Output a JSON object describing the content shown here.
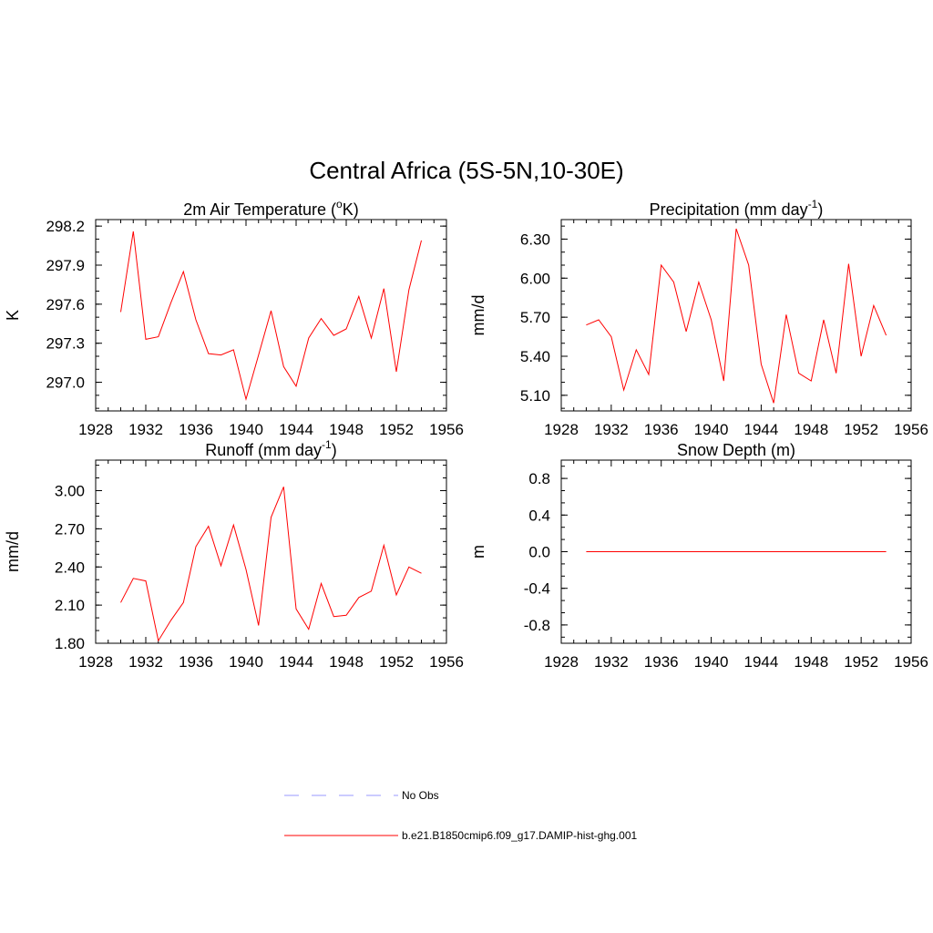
{
  "figure_title": "Central Africa (5S-5N,10-30E)",
  "line_color": "#ff0000",
  "obs_color": "#9999ff",
  "chart_data": [
    {
      "type": "line",
      "title_parts": [
        "2m Air Temperature (",
        "o",
        "K)"
      ],
      "ylabel": "K",
      "xlim": [
        1928,
        1956
      ],
      "ylim": [
        296.78,
        298.25
      ],
      "x_ticks": [
        "1928",
        "1932",
        "1936",
        "1940",
        "1944",
        "1948",
        "1952",
        "1956"
      ],
      "y_ticks": [
        "297.0",
        "297.3",
        "297.6",
        "297.9",
        "298.2"
      ],
      "series": [
        {
          "x": [
            1930,
            1931,
            1932,
            1933,
            1934,
            1935,
            1936,
            1937,
            1938,
            1939,
            1940,
            1941,
            1942,
            1943,
            1944,
            1945,
            1946,
            1947,
            1948,
            1949,
            1950,
            1951,
            1952,
            1953,
            1954
          ],
          "y": [
            297.54,
            298.16,
            297.33,
            297.35,
            297.61,
            297.85,
            297.48,
            297.22,
            297.21,
            297.25,
            296.87,
            297.21,
            297.55,
            297.12,
            296.97,
            297.34,
            297.49,
            297.36,
            297.41,
            297.66,
            297.34,
            297.72,
            297.08,
            297.71,
            298.09
          ]
        }
      ]
    },
    {
      "type": "line",
      "title_parts": [
        "Precipitation (mm day",
        "-1",
        ")"
      ],
      "ylabel": "mm/d",
      "xlim": [
        1928,
        1956
      ],
      "ylim": [
        4.98,
        6.45
      ],
      "x_ticks": [
        "1928",
        "1932",
        "1936",
        "1940",
        "1944",
        "1948",
        "1952",
        "1956"
      ],
      "y_ticks": [
        "5.10",
        "5.40",
        "5.70",
        "6.00",
        "6.30"
      ],
      "series": [
        {
          "x": [
            1930,
            1931,
            1932,
            1933,
            1934,
            1935,
            1936,
            1937,
            1938,
            1939,
            1940,
            1941,
            1942,
            1943,
            1944,
            1945,
            1946,
            1947,
            1948,
            1949,
            1950,
            1951,
            1952,
            1953,
            1954
          ],
          "y": [
            5.64,
            5.68,
            5.55,
            5.14,
            5.45,
            5.26,
            6.1,
            5.97,
            5.59,
            5.97,
            5.68,
            5.21,
            6.38,
            6.1,
            5.34,
            5.04,
            5.72,
            5.27,
            5.21,
            5.68,
            5.27,
            6.11,
            5.4,
            5.79,
            5.56
          ]
        }
      ]
    },
    {
      "type": "line",
      "title_parts": [
        "Runoff (mm day",
        "-1",
        ")"
      ],
      "ylabel": "mm/d",
      "xlim": [
        1928,
        1956
      ],
      "ylim": [
        1.8,
        3.24
      ],
      "x_ticks": [
        "1928",
        "1932",
        "1936",
        "1940",
        "1944",
        "1948",
        "1952",
        "1956"
      ],
      "y_ticks": [
        "1.80",
        "2.10",
        "2.40",
        "2.70",
        "3.00"
      ],
      "series": [
        {
          "x": [
            1930,
            1931,
            1932,
            1933,
            1934,
            1935,
            1936,
            1937,
            1938,
            1939,
            1940,
            1941,
            1942,
            1943,
            1944,
            1945,
            1946,
            1947,
            1948,
            1949,
            1950,
            1951,
            1952,
            1953,
            1954
          ],
          "y": [
            2.12,
            2.31,
            2.29,
            1.82,
            1.98,
            2.12,
            2.56,
            2.72,
            2.41,
            2.73,
            2.38,
            1.94,
            2.79,
            3.03,
            2.07,
            1.91,
            2.27,
            2.01,
            2.02,
            2.16,
            2.21,
            2.57,
            2.18,
            2.4,
            2.35
          ]
        }
      ]
    },
    {
      "type": "line",
      "title_parts": [
        "Snow Depth (m)"
      ],
      "ylabel": "m",
      "xlim": [
        1928,
        1956
      ],
      "ylim": [
        -1.0,
        1.0
      ],
      "x_ticks": [
        "1928",
        "1932",
        "1936",
        "1940",
        "1944",
        "1948",
        "1952",
        "1956"
      ],
      "y_ticks": [
        "-0.8",
        "-0.4",
        "0.0",
        "0.4",
        "0.8"
      ],
      "series": [
        {
          "x": [
            1930,
            1954
          ],
          "y": [
            0,
            0
          ]
        }
      ]
    }
  ],
  "legend": [
    {
      "label": "No Obs",
      "style": "dashed"
    },
    {
      "label": "b.e21.B1850cmip6.f09_g17.DAMIP-hist-ghg.001",
      "style": "solid"
    }
  ]
}
